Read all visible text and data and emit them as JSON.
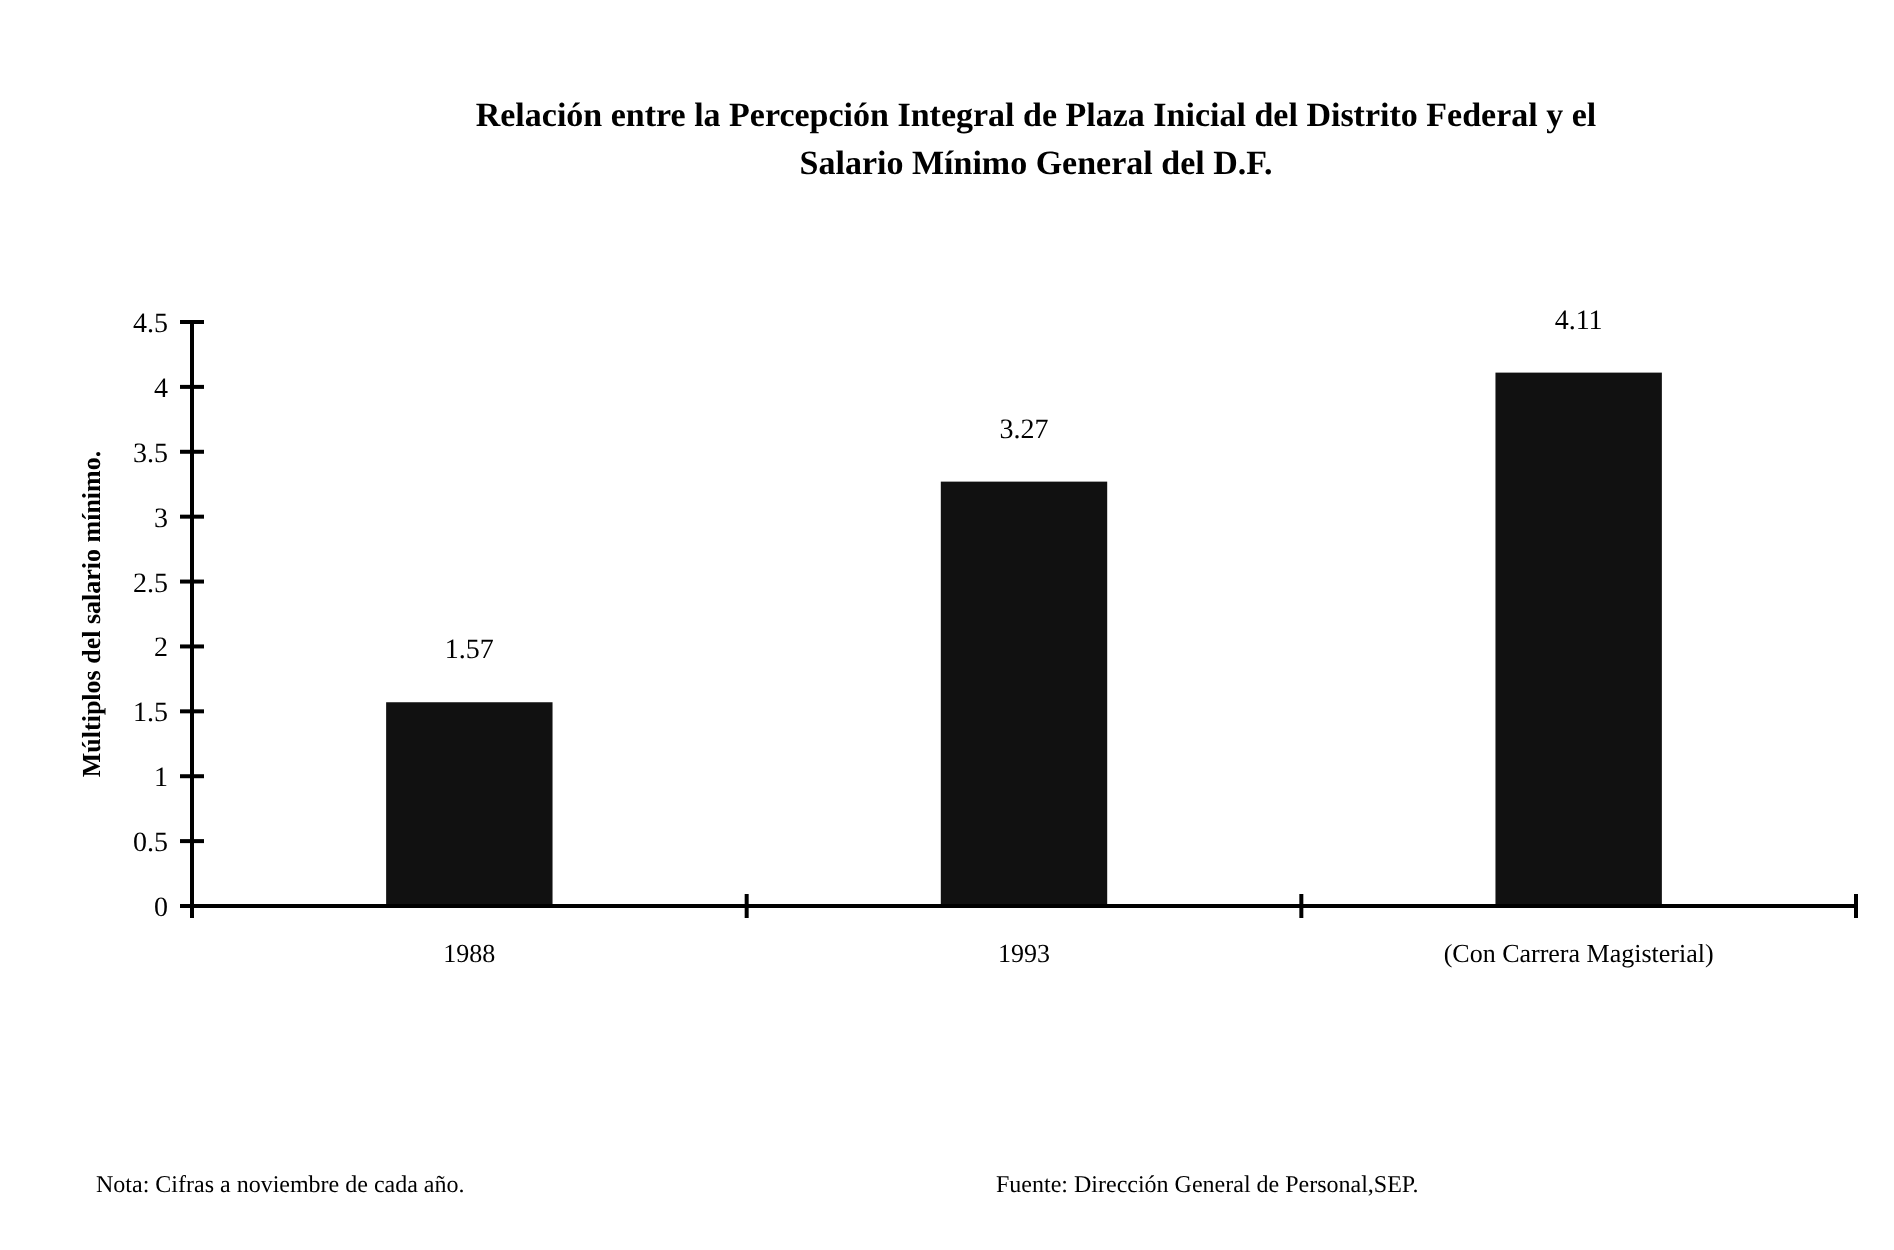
{
  "chart_data": {
    "type": "bar",
    "title": "Relación entre la Percepción Integral de Plaza Inicial del Distrito Federal y el Salario Mínimo General del D.F.",
    "ylabel": "Múltiplos del salario mínimo.",
    "categories": [
      "1988",
      "1993",
      "(Con Carrera Magisterial)"
    ],
    "values": [
      1.57,
      3.27,
      4.11
    ],
    "color": "#111111",
    "data_labels": true,
    "ylim": [
      0,
      4.5
    ],
    "yticks": [
      0,
      0.5,
      1,
      1.5,
      2,
      2.5,
      3,
      3.5,
      4,
      4.5
    ],
    "grid": false,
    "annotations": [
      "Nota: Cifras a noviembre de cada año.",
      "Fuente: Dirección General de Personal,SEP."
    ]
  }
}
